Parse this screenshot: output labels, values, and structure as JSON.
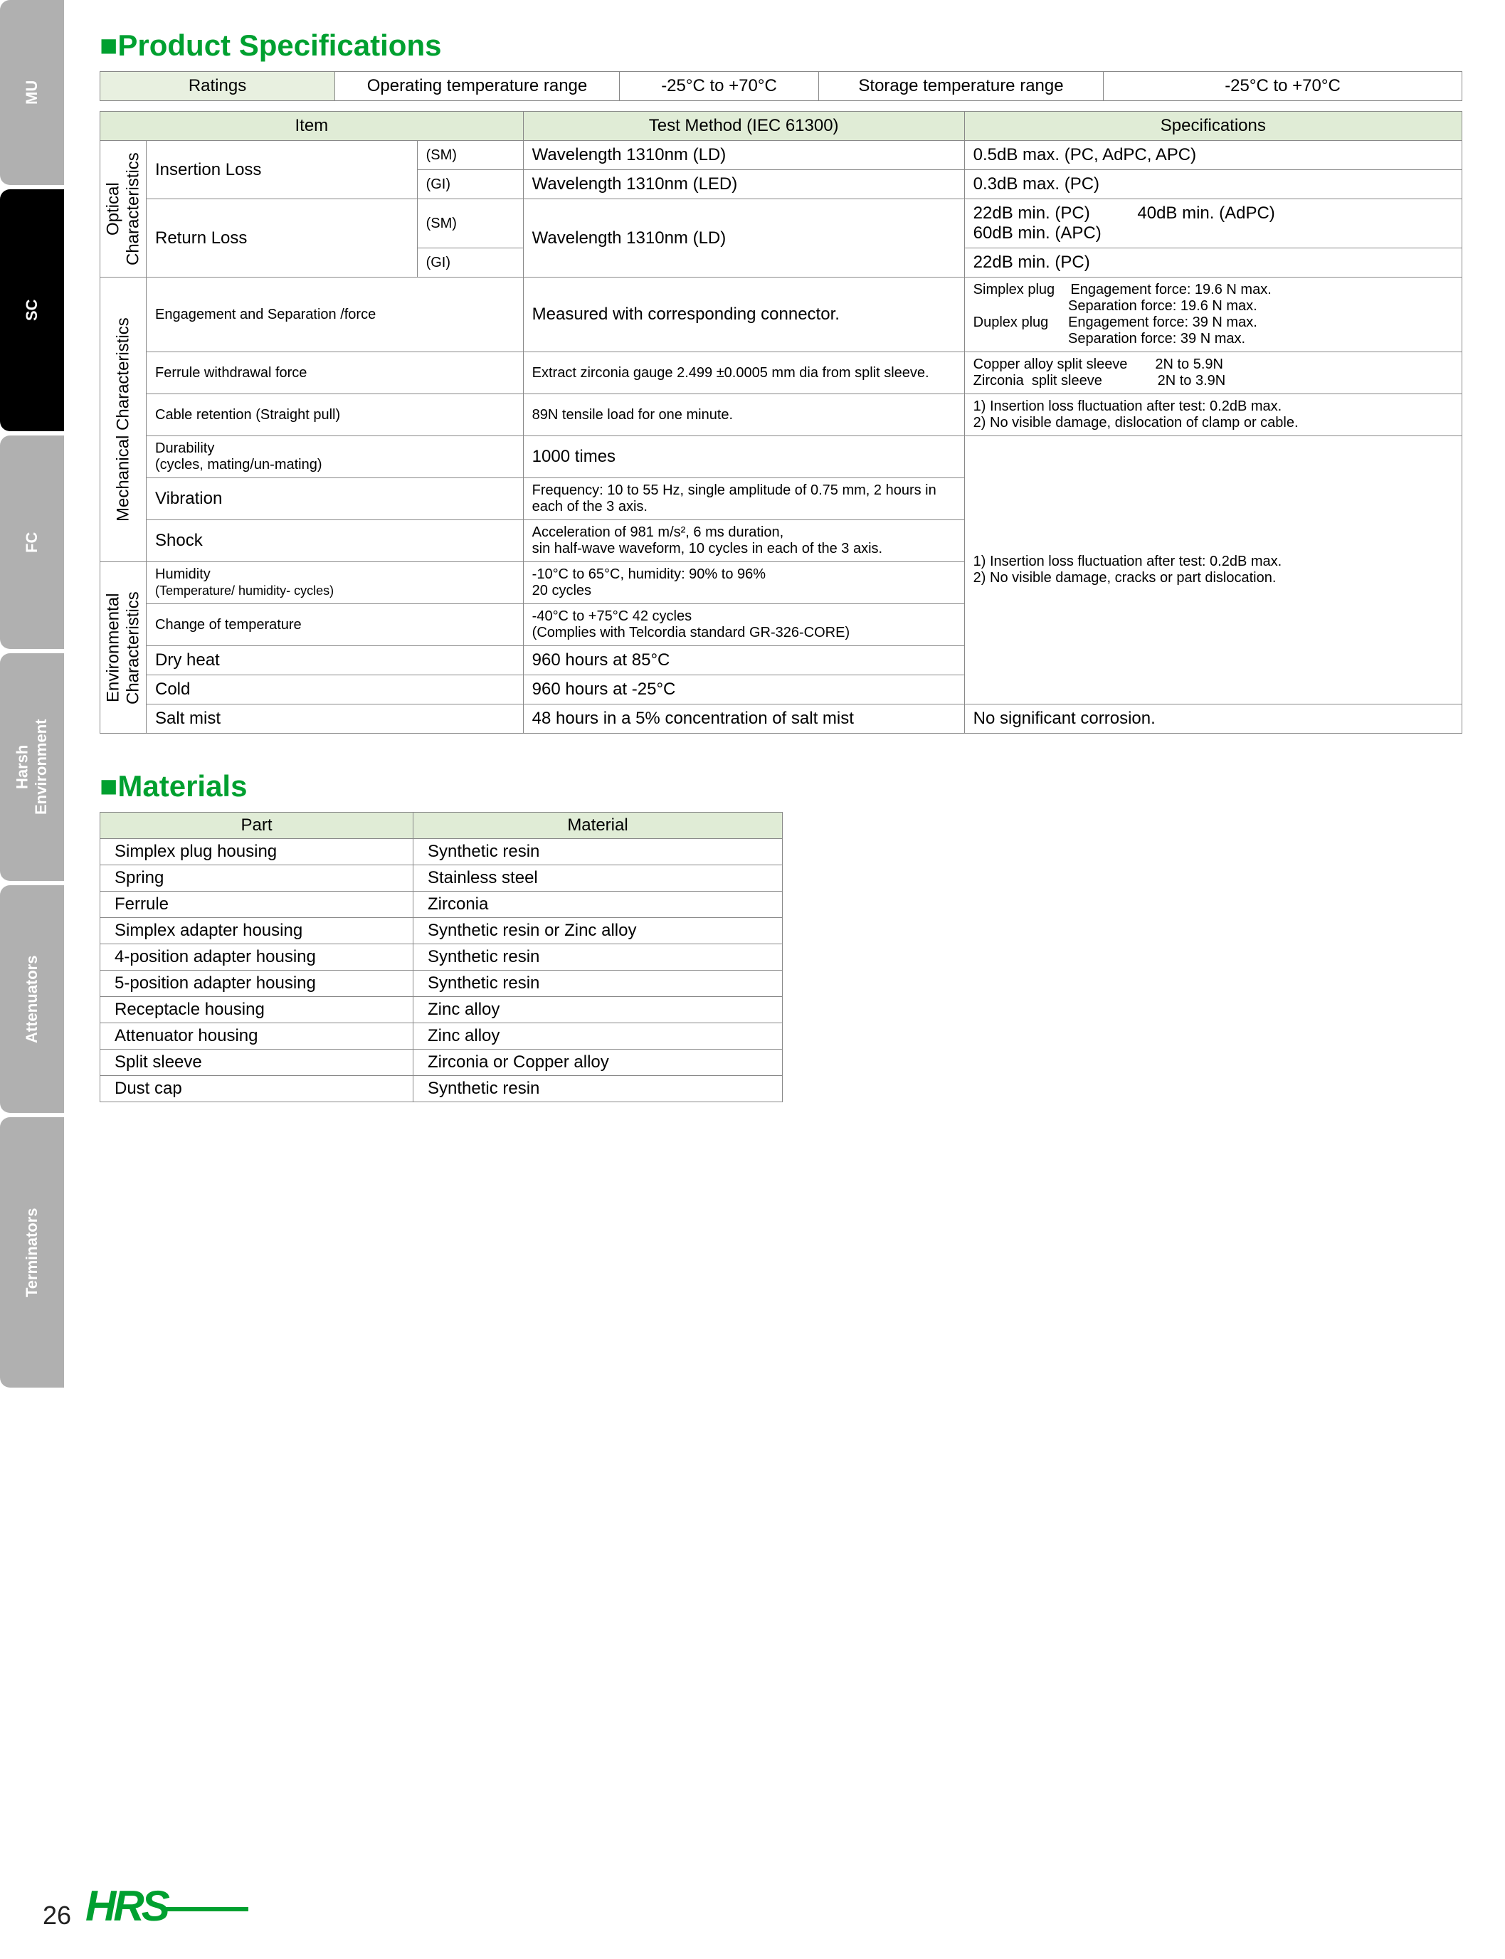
{
  "sidebar": {
    "tabs": [
      "MU",
      "SC",
      "FC",
      "Harsh\nEnvironment",
      "Attenuators",
      "Terminators"
    ],
    "active_index": 1,
    "active_bg": "#000000",
    "inactive_bg": "#b0b0b0",
    "text_color": "#ffffff"
  },
  "sections": {
    "specs_title": "Product Specifications",
    "materials_title": "Materials"
  },
  "colors": {
    "heading": "#00a030",
    "header_bg": "#e0ecd6",
    "border": "#888888"
  },
  "ratings": {
    "label": "Ratings",
    "op_label": "Operating temperature range",
    "op_value": "-25°C to +70°C",
    "storage_label": "Storage temperature range",
    "storage_value": "-25°C to +70°C"
  },
  "spec_headers": {
    "item": "Item",
    "test": "Test Method (IEC 61300)",
    "spec": "Specifications"
  },
  "groups": {
    "optical": "Optical\nCharacteristics",
    "mechanical": "Mechanical Characteristics",
    "environmental": "Environmental\nCharacteristics"
  },
  "optical": {
    "insertion_loss": {
      "name": "Insertion Loss",
      "sm_label": "(SM)",
      "gi_label": "(GI)",
      "sm_test": "Wavelength 1310nm (LD)",
      "gi_test": "Wavelength 1310nm (LED)",
      "sm_spec": "0.5dB max. (PC, AdPC, APC)",
      "gi_spec": "0.3dB max. (PC)"
    },
    "return_loss": {
      "name": "Return Loss",
      "sm_label": "(SM)",
      "gi_label": "(GI)",
      "test": "Wavelength 1310nm (LD)",
      "sm_spec": "22dB min. (PC)          40dB min. (AdPC)\n60dB min. (APC)",
      "gi_spec": "22dB min. (PC)"
    }
  },
  "mechanical": {
    "engagement": {
      "name": "Engagement and Separation /force",
      "test": "Measured with corresponding connector.",
      "spec": "Simplex plug    Engagement force: 19.6 N max.\n                        Separation force: 19.6 N max.\nDuplex plug     Engagement force: 39 N max.\n                        Separation force: 39 N max."
    },
    "ferrule": {
      "name": "Ferrule withdrawal force",
      "test": "Extract zirconia gauge 2.499 ±0.0005 mm dia from split sleeve.",
      "spec": "Copper alloy split sleeve       2N to 5.9N\nZirconia  split sleeve              2N to 3.9N"
    },
    "cable": {
      "name": "Cable retention (Straight pull)",
      "test": "89N tensile load for one minute.",
      "spec": "1) Insertion loss fluctuation after test: 0.2dB max.\n2) No visible damage, dislocation of clamp or cable."
    },
    "durability": {
      "name": "Durability",
      "sub": "(cycles, mating/un-mating)",
      "test": "1000 times"
    },
    "vibration": {
      "name": "Vibration",
      "test": "Frequency: 10 to 55 Hz, single amplitude of 0.75 mm, 2 hours in each of the 3 axis."
    },
    "shock": {
      "name": "Shock",
      "test": "Acceleration of 981 m/s², 6 ms duration,\nsin half-wave waveform, 10 cycles in each of the 3 axis."
    },
    "shared_spec": "1) Insertion loss fluctuation after test: 0.2dB max.\n2) No visible damage, cracks or part dislocation."
  },
  "environmental": {
    "humidity": {
      "name": "Humidity",
      "sub": "(Temperature/ humidity- cycles)",
      "test": "-10°C to 65°C, humidity: 90% to 96%\n20 cycles"
    },
    "change_temp": {
      "name": "Change of temperature",
      "test": "-40°C to +75°C   42 cycles\n(Complies with Telcordia standard GR-326-CORE)"
    },
    "dry_heat": {
      "name": "Dry heat",
      "test": "960 hours at  85°C"
    },
    "cold": {
      "name": "Cold",
      "test": "960 hours at -25°C"
    },
    "salt": {
      "name": "Salt mist",
      "test": "48 hours in a 5% concentration of salt mist",
      "spec": "No significant corrosion."
    }
  },
  "materials": {
    "headers": {
      "part": "Part",
      "material": "Material"
    },
    "rows": [
      {
        "part": "Simplex plug housing",
        "material": "Synthetic resin"
      },
      {
        "part": "Spring",
        "material": "Stainless steel"
      },
      {
        "part": "Ferrule",
        "material": "Zirconia"
      },
      {
        "part": "Simplex adapter housing",
        "material": "Synthetic resin or Zinc alloy"
      },
      {
        "part": "4-position adapter housing",
        "material": "Synthetic resin"
      },
      {
        "part": "5-position adapter housing",
        "material": "Synthetic resin"
      },
      {
        "part": "Receptacle housing",
        "material": "Zinc alloy"
      },
      {
        "part": "Attenuator housing",
        "material": "Zinc alloy"
      },
      {
        "part": "Split sleeve",
        "material": "Zirconia or Copper alloy"
      },
      {
        "part": "Dust cap",
        "material": "Synthetic resin"
      }
    ]
  },
  "footer": {
    "page": "26",
    "logo": "HRS"
  }
}
